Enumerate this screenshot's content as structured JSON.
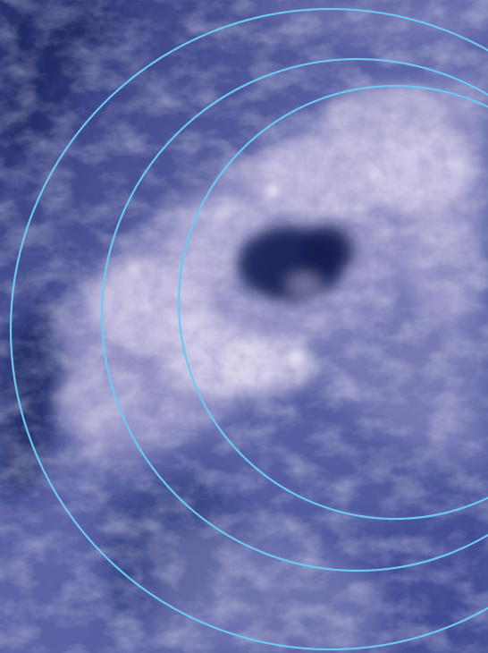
{
  "image": {
    "subject": "satellite-cloud-view",
    "colors": {
      "base": "#3d4a86",
      "deep": "#1f2a63",
      "cloud_light": "#d9d2ec",
      "cloud_mid": "#a9a6d2",
      "eye": "#141c4f",
      "ring_stroke": "#6cc8f2"
    },
    "rings": [
      {
        "name": "outer-ring"
      },
      {
        "name": "middle-ring"
      },
      {
        "name": "inner-ring"
      }
    ]
  }
}
